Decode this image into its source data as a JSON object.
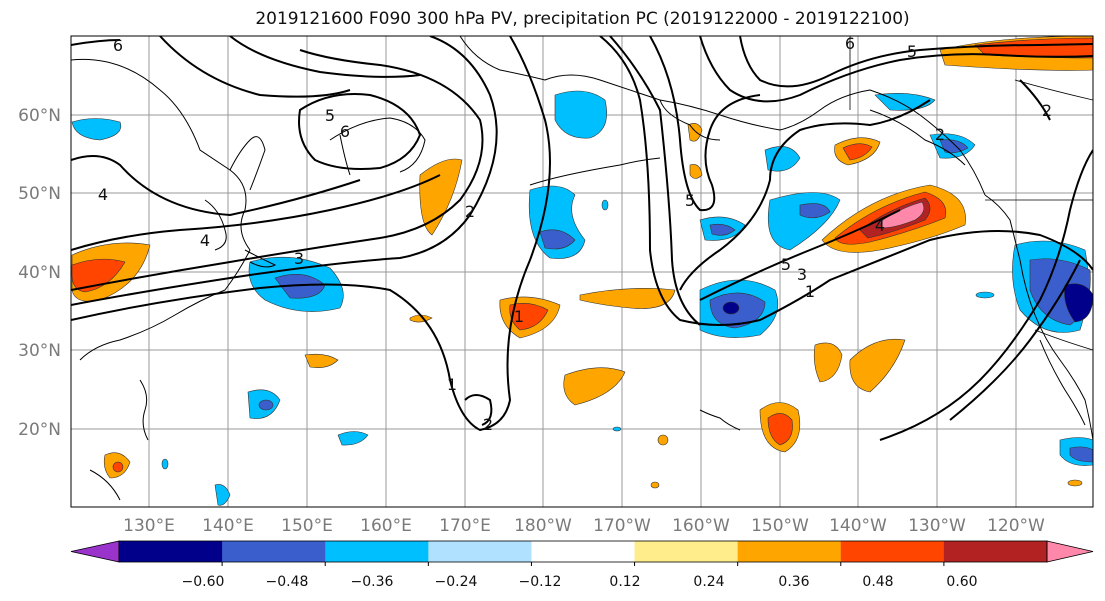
{
  "title": "2019121600 F090 300 hPa PV, precipitation PC (2019122000 - 2019122100)",
  "map": {
    "lat_labels": [
      "60°N",
      "50°N",
      "40°N",
      "30°N",
      "20°N"
    ],
    "lon_labels": [
      "130°E",
      "140°E",
      "150°E",
      "160°E",
      "170°E",
      "180°W",
      "170°W",
      "160°W",
      "150°W",
      "140°W",
      "130°W",
      "120°W"
    ],
    "contour_labels": [
      "6",
      "5",
      "6",
      "4",
      "4",
      "3",
      "2",
      "1",
      "2",
      "1",
      "6",
      "5",
      "2",
      "5",
      "5",
      "3",
      "1",
      "4",
      "2"
    ]
  },
  "colorbar": {
    "ticks": [
      "−0.60",
      "−0.48",
      "−0.36",
      "−0.24",
      "−0.12",
      "0.12",
      "0.24",
      "0.36",
      "0.48",
      "0.60"
    ],
    "colors": [
      "#9933cc",
      "#00008b",
      "#3a5fcd",
      "#00bfff",
      "#b0e2ff",
      "#ffffff",
      "#ffec8b",
      "#ffa500",
      "#ff4500",
      "#b22222",
      "#ff88aa"
    ]
  }
}
